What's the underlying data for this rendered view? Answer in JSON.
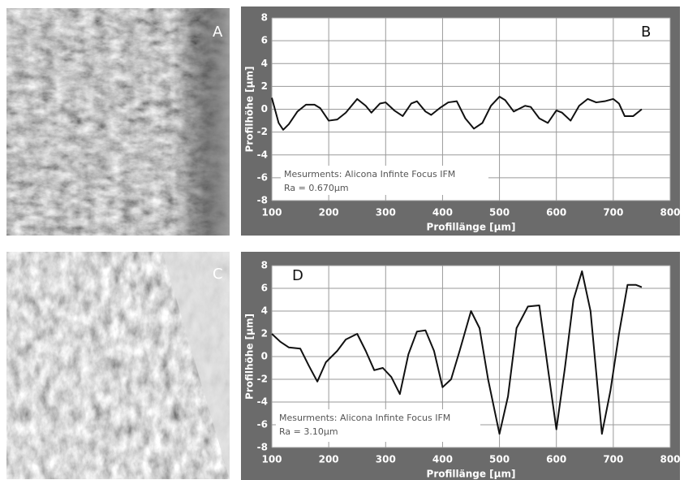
{
  "images": [
    {
      "label": "A"
    },
    {
      "label": "C"
    }
  ],
  "chart_data": [
    {
      "type": "line",
      "panel_label": "B",
      "xlabel": "Profillänge [µm]",
      "ylabel": "Profilhöhe [µm]",
      "annotations": [
        "Mesurments: Alicona Infinte Focus IFM",
        "Ra = 0.670µm"
      ],
      "xlim": [
        100,
        800
      ],
      "xticks": [
        100,
        200,
        300,
        400,
        500,
        600,
        700,
        800
      ],
      "ylim": [
        -8,
        8
      ],
      "yticks": [
        -8,
        -6,
        -4,
        -2,
        0,
        2,
        4,
        6,
        8
      ],
      "grid": true,
      "x": [
        100,
        112,
        120,
        130,
        145,
        160,
        175,
        185,
        200,
        215,
        230,
        250,
        265,
        275,
        290,
        300,
        315,
        330,
        345,
        355,
        370,
        380,
        395,
        410,
        425,
        440,
        455,
        470,
        485,
        500,
        510,
        525,
        545,
        555,
        570,
        585,
        600,
        610,
        625,
        640,
        655,
        670,
        685,
        700,
        710,
        720,
        735,
        750
      ],
      "series": [
        {
          "color": "#111111",
          "values": [
            1.0,
            -1.2,
            -1.8,
            -1.3,
            -0.2,
            0.4,
            0.4,
            0.1,
            -1.0,
            -0.9,
            -0.3,
            0.9,
            0.3,
            -0.3,
            0.5,
            0.6,
            -0.1,
            -0.6,
            0.5,
            0.7,
            -0.2,
            -0.5,
            0.1,
            0.6,
            0.7,
            -0.8,
            -1.7,
            -1.2,
            0.3,
            1.1,
            0.8,
            -0.2,
            0.3,
            0.2,
            -0.8,
            -1.2,
            -0.1,
            -0.3,
            -1.0,
            0.3,
            0.9,
            0.6,
            0.7,
            0.9,
            0.5,
            -0.6,
            -0.6,
            0.0
          ]
        }
      ]
    },
    {
      "type": "line",
      "panel_label": "D",
      "xlabel": "Profillänge [µm]",
      "ylabel": "Profilhöhe [µm]",
      "annotations": [
        "Mesurments: Alicona Infinte Focus IFM",
        "Ra = 3.10µm"
      ],
      "xlim": [
        100,
        800
      ],
      "xticks": [
        100,
        200,
        300,
        400,
        500,
        600,
        700,
        800
      ],
      "ylim": [
        -8,
        8
      ],
      "yticks": [
        -8,
        -6,
        -4,
        -2,
        0,
        2,
        4,
        6,
        8
      ],
      "grid": true,
      "x": [
        100,
        115,
        130,
        150,
        165,
        180,
        195,
        215,
        230,
        250,
        265,
        280,
        295,
        310,
        325,
        340,
        355,
        370,
        385,
        400,
        415,
        430,
        450,
        465,
        480,
        500,
        515,
        530,
        550,
        570,
        585,
        600,
        615,
        630,
        645,
        660,
        680,
        695,
        710,
        725,
        740,
        750
      ],
      "series": [
        {
          "color": "#111111",
          "values": [
            2.0,
            1.3,
            0.8,
            0.7,
            -0.8,
            -2.2,
            -0.5,
            0.5,
            1.5,
            2.0,
            0.5,
            -1.2,
            -1.0,
            -1.8,
            -3.3,
            0.2,
            2.2,
            2.3,
            0.5,
            -2.7,
            -2.0,
            0.5,
            4.0,
            2.5,
            -2.0,
            -6.8,
            -3.5,
            2.5,
            4.4,
            4.5,
            -1.0,
            -6.4,
            -1.0,
            5.0,
            7.5,
            4.0,
            -6.8,
            -3.0,
            2.0,
            6.3,
            6.3,
            6.1
          ]
        }
      ]
    }
  ]
}
